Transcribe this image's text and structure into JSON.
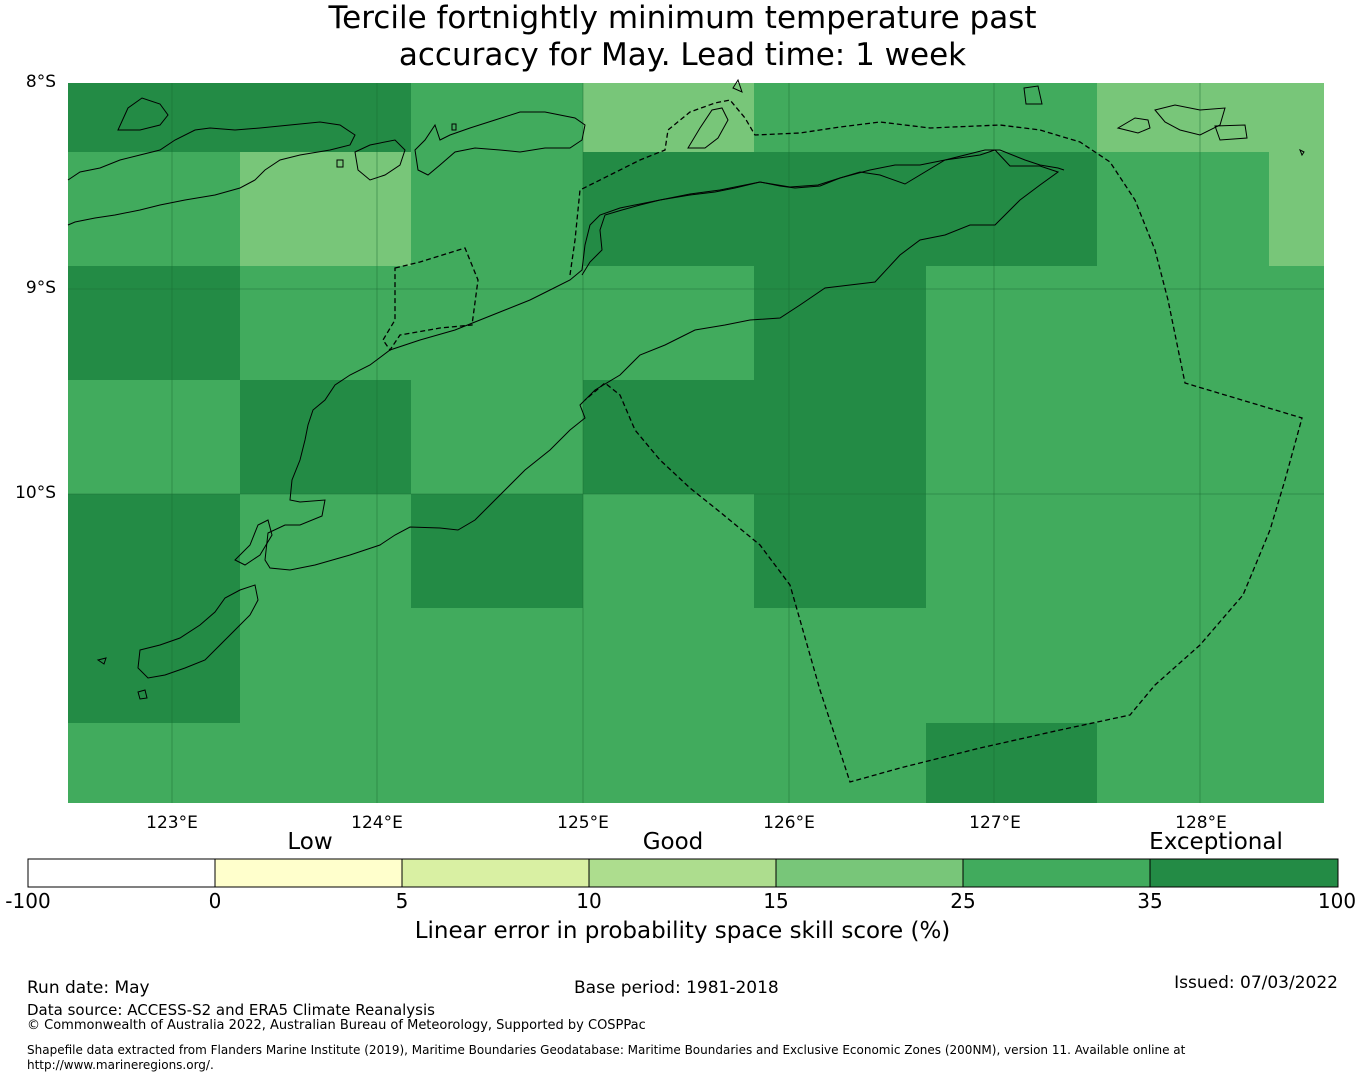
{
  "title_line1": "Tercile fortnightly minimum temperature past",
  "title_line2": "accuracy for May. Lead time: 1 week",
  "map": {
    "lat_labels": [
      "8°S",
      "9°S",
      "10°S"
    ],
    "lon_labels": [
      "123°E",
      "124°E",
      "125°E",
      "126°E",
      "127°E",
      "128°E"
    ],
    "lon_range": [
      122.5,
      128.6
    ],
    "lat_range": [
      -8.0,
      -11.5
    ],
    "colors": {
      "cat_35_100": "#238b45",
      "cat_25_35": "#41ab5d",
      "cat_15_25": "#78c679"
    }
  },
  "colorbar": {
    "categories": [
      "Low",
      "Good",
      "Exceptional"
    ],
    "ticks": [
      "-100",
      "0",
      "5",
      "10",
      "15",
      "25",
      "35",
      "100"
    ],
    "colors": [
      "#ffffff",
      "#ffffcc",
      "#d9f0a3",
      "#addd8e",
      "#78c679",
      "#41ab5d",
      "#238b45"
    ],
    "label": "Linear error in probability space skill score (%)"
  },
  "footer": {
    "run_date": "Run date: May",
    "base_period": "Base period: 1981-2018",
    "issued": "Issued: 07/03/2022",
    "data_source": "Data source: ACCESS-S2 and ERA5 Climate Reanalysis",
    "copyright": "© Commonwealth of Australia 2022, Australian Bureau of Meteorology, Supported by COSPPac",
    "shapefile_line1": "Shapefile data extracted from Flanders Marine Institute (2019), Maritime Boundaries Geodatabase: Maritime Boundaries and Exclusive Economic Zones (200NM), version 11. Available online at",
    "shapefile_line2": "http://www.marineregions.org/."
  }
}
